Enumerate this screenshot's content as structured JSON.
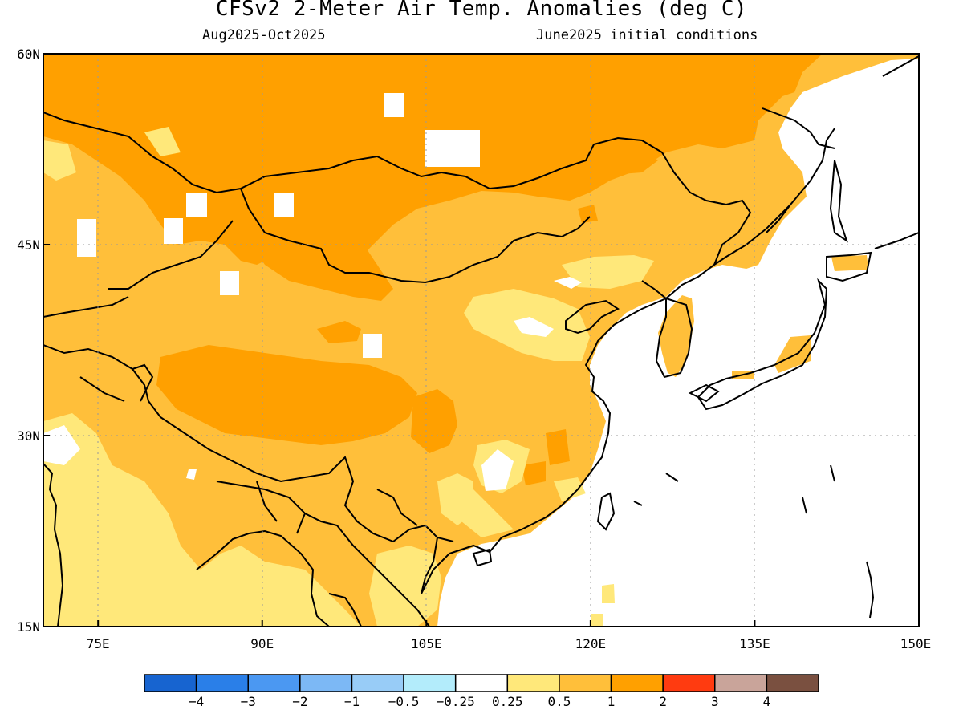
{
  "title": "CFSv2 2-Meter Air Temp. Anomalies (deg C)",
  "subtitle_left": "Aug2025-Oct2025",
  "subtitle_right": "June2025 initial conditions",
  "map": {
    "lon_range": [
      70,
      150
    ],
    "lat_range": [
      15,
      60
    ],
    "lon_ticks": [
      "75E",
      "90E",
      "105E",
      "120E",
      "135E",
      "150E"
    ],
    "lat_ticks": [
      "60N",
      "45N",
      "30N",
      "15N"
    ],
    "lon_tick_values": [
      75,
      90,
      105,
      120,
      135,
      150
    ],
    "lat_tick_values": [
      60,
      45,
      30,
      15
    ],
    "grid": "dotted"
  },
  "colorbar": {
    "colors": [
      "#1764d0",
      "#2a7fe8",
      "#4b98f2",
      "#7cb8f5",
      "#98ccf7",
      "#b3ecfb",
      "#ffffff",
      "#ffe87a",
      "#ffbf3a",
      "#ffa000",
      "#ff3b10",
      "#c9a49a",
      "#7a5040"
    ],
    "labels": [
      "-4",
      "-3",
      "-2",
      "-1",
      "-0.5",
      "-0.25",
      "0.25",
      "0.5",
      "1",
      "2",
      "3",
      "4"
    ]
  },
  "colors": {
    "ocean": "#ffffff",
    "anom_0_25_0_5": "#ffe87a",
    "anom_0_5_1": "#ffbf3a",
    "anom_1_2": "#ffa000"
  }
}
